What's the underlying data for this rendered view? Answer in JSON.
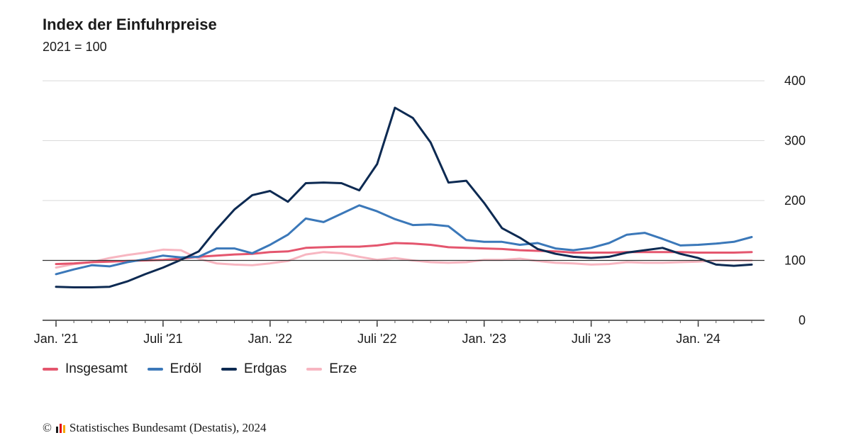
{
  "header": {
    "title": "Index der Einfuhrpreise",
    "subtitle": "2021 = 100"
  },
  "footer": {
    "copyright_symbol": "©",
    "source": "Statistisches Bundesamt (Destatis), 2024",
    "logo_icon": "destatis-logo-icon",
    "logo_colors": [
      "#1a1a1a",
      "#e30613",
      "#f5a800"
    ]
  },
  "chart_data": {
    "type": "line",
    "title": "Index der Einfuhrpreise",
    "subtitle": "2021 = 100",
    "xlabel": "",
    "ylabel": "",
    "ylim": [
      0,
      400
    ],
    "yticks": [
      0,
      100,
      200,
      300,
      400
    ],
    "grid": true,
    "y_axis_position": "right",
    "reference_line": 100,
    "legend_position": "bottom-left",
    "x": [
      "2021-01",
      "2021-02",
      "2021-03",
      "2021-04",
      "2021-05",
      "2021-06",
      "2021-07",
      "2021-08",
      "2021-09",
      "2021-10",
      "2021-11",
      "2021-12",
      "2022-01",
      "2022-02",
      "2022-03",
      "2022-04",
      "2022-05",
      "2022-06",
      "2022-07",
      "2022-08",
      "2022-09",
      "2022-10",
      "2022-11",
      "2022-12",
      "2023-01",
      "2023-02",
      "2023-03",
      "2023-04",
      "2023-05",
      "2023-06",
      "2023-07",
      "2023-08",
      "2023-09",
      "2023-10",
      "2023-11",
      "2023-12",
      "2024-01",
      "2024-02",
      "2024-03",
      "2024-04"
    ],
    "xticks": [
      {
        "at": "2021-01",
        "label": "Jan. '21"
      },
      {
        "at": "2021-07",
        "label": "Juli '21"
      },
      {
        "at": "2022-01",
        "label": "Jan. '22"
      },
      {
        "at": "2022-07",
        "label": "Juli '22"
      },
      {
        "at": "2023-01",
        "label": "Jan. '23"
      },
      {
        "at": "2023-07",
        "label": "Juli '23"
      },
      {
        "at": "2024-01",
        "label": "Jan. '24"
      }
    ],
    "series": [
      {
        "name": "Insgesamt",
        "color": "#e4566e",
        "values": [
          94,
          95,
          97,
          98,
          99,
          100,
          101,
          103,
          106,
          108,
          110,
          111,
          114,
          115,
          121,
          122,
          123,
          123,
          125,
          129,
          128,
          126,
          122,
          121,
          120,
          119,
          117,
          116,
          115,
          113,
          113,
          113,
          114,
          114,
          114,
          114,
          113,
          113,
          113,
          114
        ]
      },
      {
        "name": "Erdöl",
        "color": "#3b78b9",
        "values": [
          77,
          85,
          92,
          90,
          97,
          102,
          108,
          105,
          106,
          120,
          120,
          112,
          126,
          143,
          170,
          164,
          178,
          192,
          182,
          169,
          159,
          160,
          157,
          134,
          131,
          131,
          126,
          129,
          120,
          117,
          121,
          129,
          143,
          146,
          136,
          125,
          126,
          128,
          131,
          139
        ]
      },
      {
        "name": "Erdgas",
        "color": "#0d2a52",
        "values": [
          56,
          55,
          55,
          56,
          65,
          77,
          88,
          101,
          115,
          152,
          185,
          209,
          216,
          198,
          229,
          230,
          229,
          217,
          261,
          355,
          338,
          297,
          230,
          233,
          196,
          154,
          138,
          119,
          111,
          106,
          104,
          106,
          113,
          117,
          121,
          111,
          104,
          93,
          91,
          93
        ]
      },
      {
        "name": "Erze",
        "color": "#f7b6c1",
        "values": [
          88,
          94,
          97,
          104,
          109,
          113,
          118,
          117,
          103,
          95,
          93,
          92,
          95,
          99,
          110,
          114,
          112,
          106,
          101,
          104,
          100,
          97,
          96,
          97,
          101,
          101,
          103,
          99,
          96,
          95,
          93,
          94,
          97,
          96,
          96,
          97,
          98,
          100,
          100,
          100
        ]
      }
    ]
  }
}
